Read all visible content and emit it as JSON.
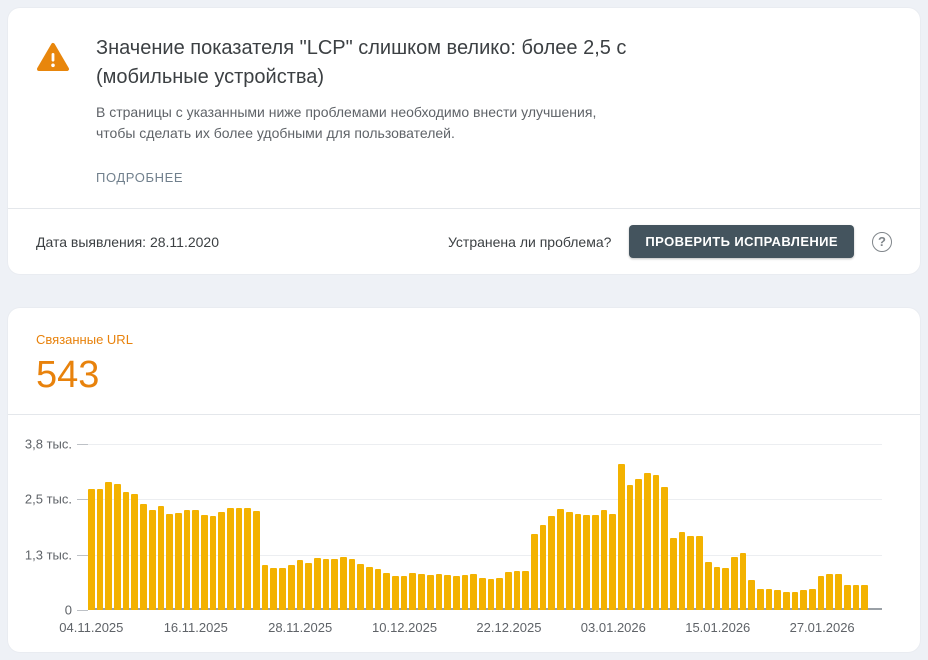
{
  "issue": {
    "warning_icon": "warning-triangle",
    "title": "Значение показателя \"LCP\" слишком велико: более 2,5 с (мобильные устройства)",
    "description": "В страницы с указанными ниже проблемами необходимо внести улучшения, чтобы сделать их более удобными для пользователей.",
    "details_link": "ПОДРОБНЕЕ",
    "detected_date_text": "Дата выявления: 28.11.2020",
    "fixed_question": "Устранена ли проблема?",
    "validate_button": "ПРОВЕРИТЬ ИСПРАВЛЕНИЕ",
    "help_icon": "?"
  },
  "related_urls": {
    "label": "Связанные URL",
    "count": "543"
  },
  "colors": {
    "accent_orange": "#E8820C",
    "bar_yellow": "#F3B200",
    "button_slate": "#44545E",
    "page_background": "#EEF1F6",
    "text_primary": "#3C4043",
    "text_secondary": "#5F6368"
  },
  "chart_data": {
    "type": "bar",
    "title": "",
    "xlabel": "",
    "ylabel": "",
    "legend": false,
    "grid": true,
    "ylim": [
      0,
      3750
    ],
    "y_ticks": [
      {
        "label": "0",
        "value": 0
      },
      {
        "label": "1,3 тыс.",
        "value": 1250
      },
      {
        "label": "2,5 тыс.",
        "value": 2500
      },
      {
        "label": "3,8 тыс.",
        "value": 3750
      }
    ],
    "x_interval": "daily",
    "x_tick_every": 12,
    "x_tick_labels": [
      "04.11.2025",
      "16.11.2025",
      "28.11.2025",
      "10.12.2025",
      "22.12.2025",
      "03.01.2026",
      "15.01.2026",
      "27.01.2026"
    ],
    "values": [
      2740,
      2740,
      2890,
      2840,
      2670,
      2615,
      2400,
      2270,
      2345,
      2170,
      2200,
      2250,
      2260,
      2155,
      2125,
      2220,
      2300,
      2300,
      2300,
      2245,
      1015,
      955,
      940,
      1010,
      1130,
      1055,
      1170,
      1155,
      1155,
      1190,
      1150,
      1040,
      965,
      920,
      845,
      770,
      770,
      830,
      815,
      790,
      805,
      790,
      775,
      800,
      805,
      715,
      700,
      730,
      865,
      880,
      880,
      1710,
      1920,
      2125,
      2275,
      2215,
      2170,
      2140,
      2140,
      2255,
      2170,
      3300,
      2820,
      2965,
      3095,
      3060,
      2790,
      1620,
      1755,
      1670,
      1670,
      1090,
      970,
      955,
      1205,
      1295,
      680,
      470,
      470,
      445,
      415,
      415,
      445,
      470,
      770,
      815,
      815,
      560,
      560,
      560
    ]
  }
}
